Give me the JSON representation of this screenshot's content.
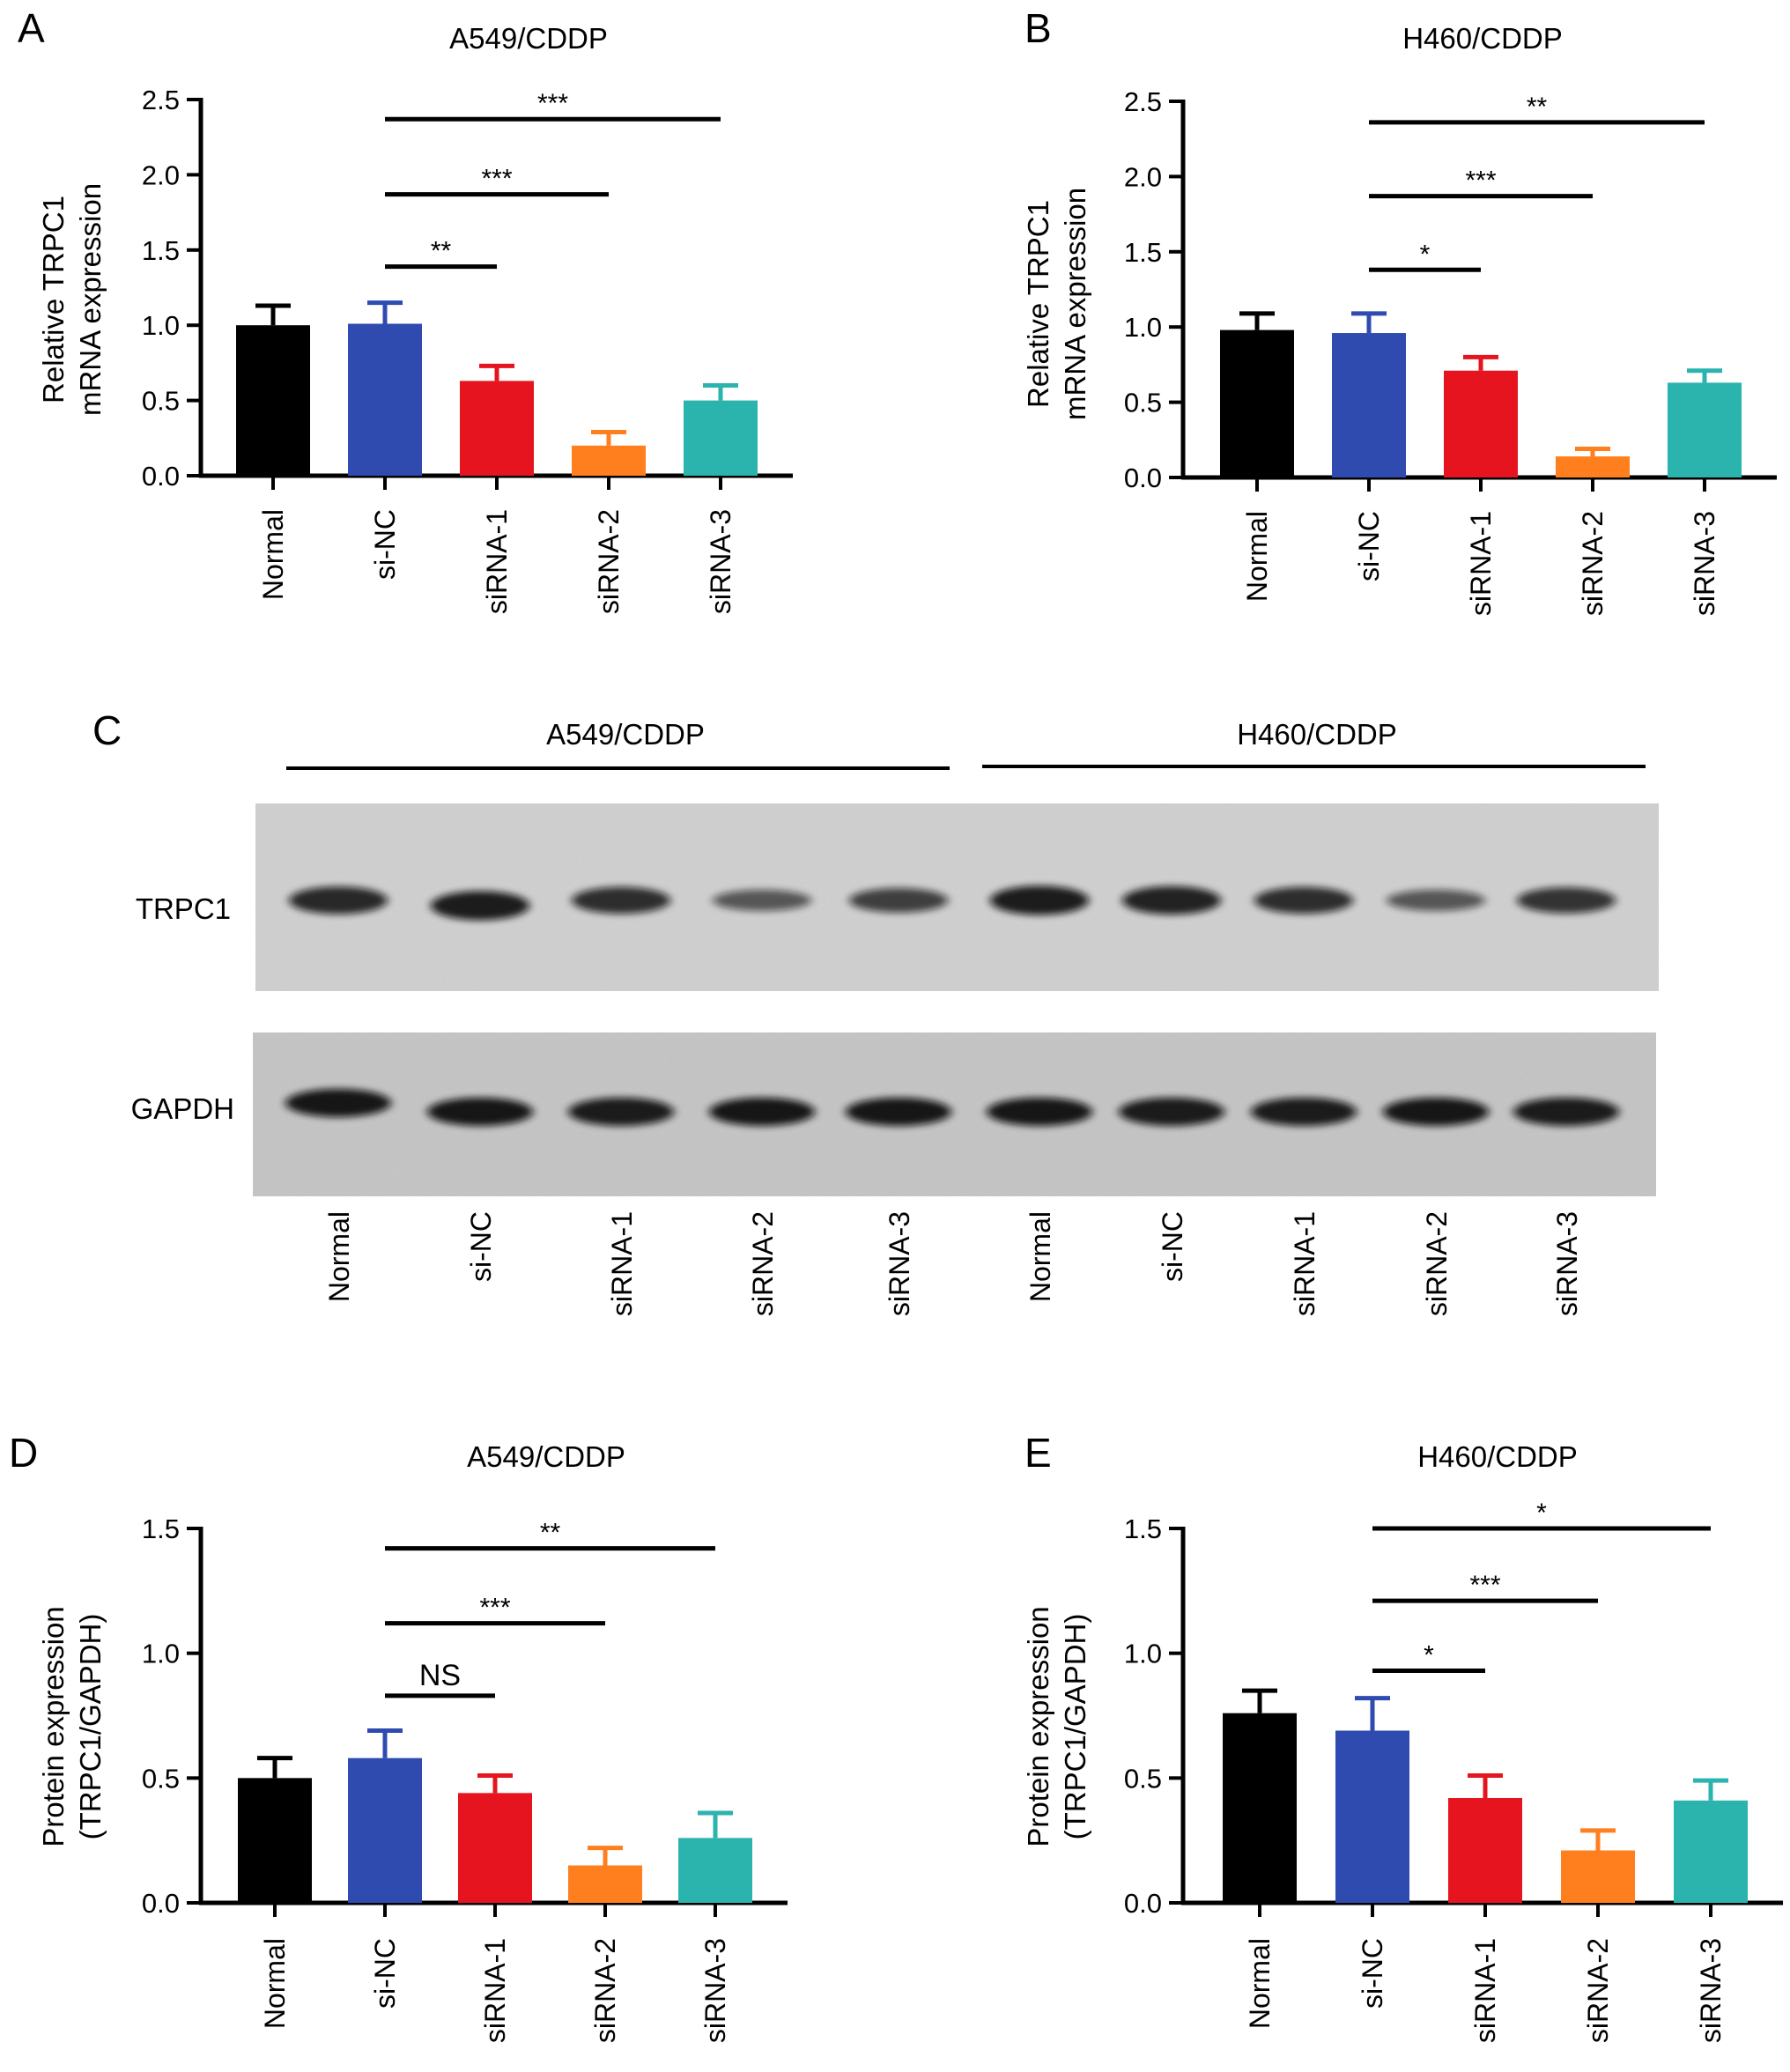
{
  "panels_text": {
    "a": "A",
    "b": "B",
    "c": "C",
    "d": "D",
    "e": "E"
  },
  "colors": {
    "normal": "#000000",
    "si_nc": "#2f4bb0",
    "sirna1": "#e5141e",
    "sirna2": "#ff7f1e",
    "sirna3": "#2bb3ad"
  },
  "blot": {
    "group_left": "A549/CDDP",
    "group_right": "H460/CDDP",
    "row_top": "TRPC1",
    "row_bottom": "GAPDH",
    "lanes": [
      "Normal",
      "si-NC",
      "siRNA-1",
      "siRNA-2",
      "siRNA-3",
      "Normal",
      "si-NC",
      "siRNA-1",
      "siRNA-2",
      "siRNA-3"
    ],
    "trpc1_intensity": [
      0.85,
      0.95,
      0.8,
      0.45,
      0.65,
      0.95,
      0.9,
      0.8,
      0.45,
      0.75
    ],
    "gapdh_intensity": [
      0.95,
      0.95,
      0.9,
      0.95,
      0.95,
      0.95,
      0.9,
      0.9,
      0.95,
      0.9
    ]
  },
  "chart_data": [
    {
      "id": "A",
      "type": "bar",
      "title": "A549/CDDP",
      "ylabel": [
        "Relative TRPC1",
        "mRNA expression"
      ],
      "categories": [
        "Normal",
        "si-NC",
        "siRNA-1",
        "siRNA-2",
        "siRNA-3"
      ],
      "values": [
        1.0,
        1.01,
        0.63,
        0.2,
        0.5
      ],
      "errors": [
        0.13,
        0.14,
        0.1,
        0.09,
        0.1
      ],
      "ylim": [
        0,
        2.5
      ],
      "yticks": [
        "0.0",
        "0.5",
        "1.0",
        "1.5",
        "2.0",
        "2.5"
      ],
      "significance": [
        {
          "from": 1,
          "to": 2,
          "y": 1.39,
          "label": "**"
        },
        {
          "from": 1,
          "to": 3,
          "y": 1.87,
          "label": "***"
        },
        {
          "from": 1,
          "to": 4,
          "y": 2.37,
          "label": "***"
        }
      ]
    },
    {
      "id": "B",
      "type": "bar",
      "title": "H460/CDDP",
      "ylabel": [
        "Relative TRPC1",
        "mRNA expression"
      ],
      "categories": [
        "Normal",
        "si-NC",
        "siRNA-1",
        "siRNA-2",
        "siRNA-3"
      ],
      "values": [
        0.98,
        0.96,
        0.71,
        0.14,
        0.63
      ],
      "errors": [
        0.11,
        0.13,
        0.09,
        0.05,
        0.08
      ],
      "ylim": [
        0,
        2.5
      ],
      "yticks": [
        "0.0",
        "0.5",
        "1.0",
        "1.5",
        "2.0",
        "2.5"
      ],
      "significance": [
        {
          "from": 1,
          "to": 2,
          "y": 1.38,
          "label": "*"
        },
        {
          "from": 1,
          "to": 3,
          "y": 1.87,
          "label": "***"
        },
        {
          "from": 1,
          "to": 4,
          "y": 2.36,
          "label": "**"
        }
      ]
    },
    {
      "id": "D",
      "type": "bar",
      "title": "A549/CDDP",
      "ylabel": [
        "Protein expression",
        "(TRPC1/GAPDH)"
      ],
      "categories": [
        "Normal",
        "si-NC",
        "siRNA-1",
        "siRNA-2",
        "siRNA-3"
      ],
      "values": [
        0.5,
        0.58,
        0.44,
        0.15,
        0.26
      ],
      "errors": [
        0.08,
        0.11,
        0.07,
        0.07,
        0.1
      ],
      "ylim": [
        0,
        1.5
      ],
      "yticks": [
        "0.0",
        "0.5",
        "1.0",
        "1.5"
      ],
      "significance": [
        {
          "from": 1,
          "to": 2,
          "y": 0.83,
          "label": "NS"
        },
        {
          "from": 1,
          "to": 3,
          "y": 1.12,
          "label": "***"
        },
        {
          "from": 1,
          "to": 4,
          "y": 1.42,
          "label": "**"
        }
      ]
    },
    {
      "id": "E",
      "type": "bar",
      "title": "H460/CDDP",
      "ylabel": [
        "Protein expression",
        "(TRPC1/GAPDH)"
      ],
      "categories": [
        "Normal",
        "si-NC",
        "siRNA-1",
        "siRNA-2",
        "siRNA-3"
      ],
      "values": [
        0.76,
        0.69,
        0.42,
        0.21,
        0.41
      ],
      "errors": [
        0.09,
        0.13,
        0.09,
        0.08,
        0.08
      ],
      "ylim": [
        0,
        1.5
      ],
      "yticks": [
        "0.0",
        "0.5",
        "1.0",
        "1.5"
      ],
      "significance": [
        {
          "from": 1,
          "to": 2,
          "y": 0.93,
          "label": "*"
        },
        {
          "from": 1,
          "to": 3,
          "y": 1.21,
          "label": "***"
        },
        {
          "from": 1,
          "to": 4,
          "y": 1.5,
          "label": "*"
        }
      ]
    }
  ]
}
